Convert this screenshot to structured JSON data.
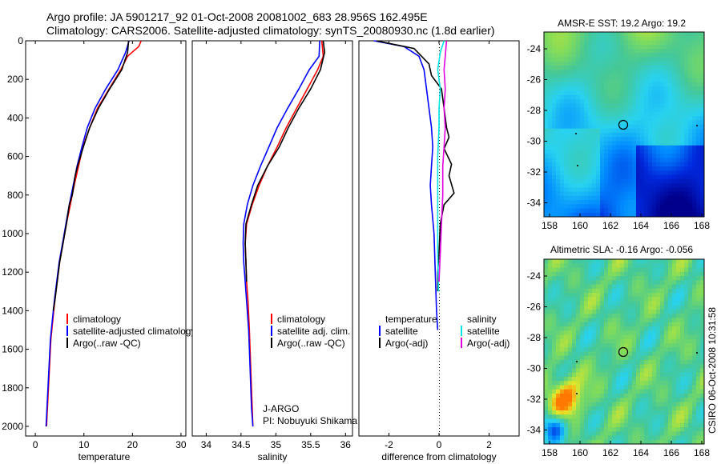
{
  "header": {
    "line1": "Argo profile: JA 5901217_92 01-Oct-2008 20081002_683 28.956S 162.495E",
    "line2": "Climatology: CARS2006. Satellite-adjusted climatology: synTS_20080930.nc (1.8d earlier)"
  },
  "colors": {
    "climatology": "#ff0000",
    "satellite": "#0000ff",
    "argo": "#000000",
    "sat_salinity": "#00e5e5",
    "argo_adj_salinity": "#e000e0"
  },
  "chart_data": [
    {
      "type": "line",
      "id": "temperature",
      "xlabel": "temperature",
      "ylabel": "",
      "xlim": [
        -2,
        31
      ],
      "ylim": [
        2050,
        0
      ],
      "xticks": [
        "0",
        "10",
        "20",
        "30"
      ],
      "yticks": [
        "0",
        "200",
        "400",
        "600",
        "800",
        "1000",
        "1200",
        "1400",
        "1600",
        "1800",
        "2000"
      ],
      "legend": {
        "position": "lower-right",
        "entries": [
          "climatology",
          "satellite-adjusted climatology",
          "Argo(..raw -QC)"
        ]
      },
      "series": [
        {
          "name": "climatology",
          "color": "#ff0000",
          "points": [
            [
              21.8,
              0
            ],
            [
              21.3,
              30
            ],
            [
              19.0,
              80
            ],
            [
              17.6,
              150
            ],
            [
              15.2,
              250
            ],
            [
              12.8,
              350
            ],
            [
              11.2,
              450
            ],
            [
              9.8,
              550
            ],
            [
              8.9,
              650
            ],
            [
              8.0,
              750
            ],
            [
              7.2,
              850
            ],
            [
              6.4,
              950
            ],
            [
              5.7,
              1050
            ],
            [
              5.0,
              1150
            ],
            [
              4.5,
              1250
            ],
            [
              4.0,
              1350
            ],
            [
              3.6,
              1450
            ],
            [
              3.2,
              1550
            ],
            [
              2.9,
              1700
            ],
            [
              2.6,
              1850
            ],
            [
              2.4,
              1950
            ],
            [
              2.3,
              2000
            ]
          ]
        },
        {
          "name": "satellite",
          "color": "#0000ff",
          "points": [
            [
              19.3,
              0
            ],
            [
              18.6,
              60
            ],
            [
              17.0,
              150
            ],
            [
              14.5,
              250
            ],
            [
              12.3,
              350
            ],
            [
              10.7,
              450
            ],
            [
              9.6,
              550
            ],
            [
              8.6,
              650
            ],
            [
              7.8,
              750
            ],
            [
              7.0,
              850
            ],
            [
              6.3,
              950
            ],
            [
              5.6,
              1050
            ],
            [
              4.9,
              1150
            ],
            [
              4.4,
              1250
            ],
            [
              3.9,
              1350
            ],
            [
              3.5,
              1450
            ],
            [
              3.1,
              1550
            ],
            [
              2.8,
              1700
            ],
            [
              2.5,
              1850
            ],
            [
              2.3,
              1950
            ],
            [
              2.2,
              2000
            ]
          ]
        },
        {
          "name": "Argo",
          "color": "#000000",
          "points": [
            [
              19.2,
              0
            ],
            [
              19.0,
              60
            ],
            [
              17.8,
              150
            ],
            [
              15.3,
              250
            ],
            [
              13.0,
              350
            ],
            [
              11.2,
              450
            ],
            [
              9.9,
              550
            ],
            [
              8.7,
              650
            ],
            [
              8.2,
              700
            ],
            [
              7.6,
              800
            ],
            [
              7.0,
              850
            ],
            [
              6.4,
              950
            ],
            [
              5.7,
              1050
            ],
            [
              5.0,
              1150
            ],
            [
              4.5,
              1250
            ],
            [
              4.0,
              1350
            ],
            [
              3.7,
              1400
            ]
          ]
        }
      ]
    },
    {
      "type": "line",
      "id": "salinity",
      "xlabel": "salinity",
      "xlim": [
        33.8,
        36.1
      ],
      "ylim": [
        2050,
        0
      ],
      "xticks": [
        "34",
        "34.5",
        "35",
        "35.5",
        "36"
      ],
      "legend": {
        "position": "lower-right",
        "entries": [
          "climatology",
          "satellite adj. clim.",
          "Argo(..raw -QC)"
        ]
      },
      "annotation": {
        "line1": "J-ARGO",
        "line2": "PI: Nobuyuki Shikama"
      },
      "series": [
        {
          "name": "climatology",
          "color": "#ff0000",
          "points": [
            [
              35.66,
              0
            ],
            [
              35.68,
              80
            ],
            [
              35.6,
              150
            ],
            [
              35.45,
              250
            ],
            [
              35.3,
              350
            ],
            [
              35.15,
              450
            ],
            [
              35.02,
              550
            ],
            [
              34.88,
              650
            ],
            [
              34.76,
              750
            ],
            [
              34.66,
              850
            ],
            [
              34.58,
              950
            ],
            [
              34.56,
              1050
            ],
            [
              34.57,
              1150
            ],
            [
              34.58,
              1250
            ],
            [
              34.6,
              1350
            ],
            [
              34.62,
              1500
            ],
            [
              34.64,
              1700
            ],
            [
              34.66,
              1900
            ],
            [
              34.67,
              2000
            ]
          ]
        },
        {
          "name": "satellite",
          "color": "#0000ff",
          "points": [
            [
              35.63,
              0
            ],
            [
              35.62,
              80
            ],
            [
              35.48,
              150
            ],
            [
              35.33,
              250
            ],
            [
              35.17,
              350
            ],
            [
              35.02,
              450
            ],
            [
              34.9,
              550
            ],
            [
              34.78,
              650
            ],
            [
              34.67,
              750
            ],
            [
              34.59,
              850
            ],
            [
              34.54,
              950
            ],
            [
              34.53,
              1050
            ],
            [
              34.54,
              1150
            ],
            [
              34.56,
              1250
            ],
            [
              34.58,
              1350
            ],
            [
              34.61,
              1500
            ],
            [
              34.63,
              1700
            ],
            [
              34.65,
              1900
            ],
            [
              34.67,
              2000
            ]
          ]
        },
        {
          "name": "Argo",
          "color": "#000000",
          "points": [
            [
              35.68,
              0
            ],
            [
              35.7,
              60
            ],
            [
              35.64,
              150
            ],
            [
              35.5,
              250
            ],
            [
              35.33,
              350
            ],
            [
              35.18,
              450
            ],
            [
              35.05,
              550
            ],
            [
              34.88,
              650
            ],
            [
              34.74,
              750
            ],
            [
              34.65,
              850
            ],
            [
              34.57,
              950
            ],
            [
              34.56,
              1050
            ],
            [
              34.57,
              1150
            ],
            [
              34.58,
              1250
            ]
          ]
        }
      ]
    },
    {
      "type": "line",
      "id": "difference",
      "xlabel": "difference from climatology",
      "xlim": [
        -3.2,
        3.2
      ],
      "ylim": [
        2050,
        0
      ],
      "xticks": [
        "-2",
        "0",
        "2"
      ],
      "legend": {
        "position": "lower-center",
        "headers": [
          "temperature",
          "salinity"
        ],
        "entries": [
          "satellite",
          "Argo(-adj)",
          "satellite",
          "Argo(-adj)"
        ]
      },
      "series": [
        {
          "name": "temperature satellite",
          "color": "#0000ff",
          "points": [
            [
              -2.6,
              0
            ],
            [
              -1.4,
              30
            ],
            [
              -0.8,
              80
            ],
            [
              -0.6,
              150
            ],
            [
              -0.5,
              250
            ],
            [
              -0.4,
              350
            ],
            [
              -0.3,
              450
            ],
            [
              -0.25,
              550
            ],
            [
              -0.3,
              650
            ],
            [
              -0.35,
              750
            ],
            [
              -0.3,
              850
            ],
            [
              -0.2,
              1000
            ],
            [
              -0.15,
              1200
            ],
            [
              -0.1,
              1400
            ],
            [
              -0.05,
              1500
            ]
          ]
        },
        {
          "name": "temperature Argo(-adj)",
          "color": "#000000",
          "points": [
            [
              -2.5,
              0
            ],
            [
              -1.0,
              40
            ],
            [
              -0.4,
              120
            ],
            [
              -0.3,
              180
            ],
            [
              0.1,
              250
            ],
            [
              0.2,
              350
            ],
            [
              0.3,
              450
            ],
            [
              0.4,
              500
            ],
            [
              0.2,
              560
            ],
            [
              0.5,
              640
            ],
            [
              0.4,
              700
            ],
            [
              0.6,
              790
            ],
            [
              0.2,
              850
            ],
            [
              0.05,
              950
            ],
            [
              0.0,
              1100
            ],
            [
              -0.05,
              1200
            ],
            [
              -0.05,
              1300
            ]
          ]
        },
        {
          "name": "salinity satellite",
          "color": "#00e5e5",
          "points": [
            [
              0.2,
              0
            ],
            [
              0.05,
              60
            ],
            [
              -0.05,
              150
            ],
            [
              0.05,
              250
            ],
            [
              0.0,
              350
            ],
            [
              0.0,
              450
            ],
            [
              -0.05,
              600
            ],
            [
              -0.05,
              750
            ],
            [
              -0.05,
              900
            ],
            [
              -0.05,
              1100
            ],
            [
              -0.02,
              1300
            ]
          ]
        },
        {
          "name": "salinity Argo(-adj)",
          "color": "#e000e0",
          "points": [
            [
              0.3,
              0
            ],
            [
              0.25,
              80
            ],
            [
              0.2,
              150
            ],
            [
              0.25,
              250
            ],
            [
              0.2,
              350
            ],
            [
              0.25,
              450
            ],
            [
              0.2,
              550
            ],
            [
              0.15,
              650
            ],
            [
              0.15,
              800
            ],
            [
              0.1,
              950
            ],
            [
              0.05,
              1100
            ],
            [
              0.0,
              1250
            ]
          ]
        }
      ]
    },
    {
      "type": "heatmap",
      "id": "sst-map",
      "title": "AMSR-E SST: 19.2 Argo: 19.2",
      "xticks": [
        "158",
        "160",
        "162",
        "164",
        "166",
        "168"
      ],
      "yticks": [
        "-24",
        "-26",
        "-28",
        "-30",
        "-32",
        "-34"
      ],
      "marker": {
        "lon": 162.5,
        "lat": -28.96
      }
    },
    {
      "type": "heatmap",
      "id": "sla-map",
      "title": "Altimetric SLA: -0.16 Argo: -0.056",
      "xticks": [
        "158",
        "160",
        "162",
        "164",
        "166",
        "168"
      ],
      "yticks": [
        "-24",
        "-26",
        "-28",
        "-30",
        "-32",
        "-34"
      ],
      "side_label": "CSIRO 06-Oct-2008 10:31:58",
      "marker": {
        "lon": 162.5,
        "lat": -28.96
      }
    }
  ]
}
